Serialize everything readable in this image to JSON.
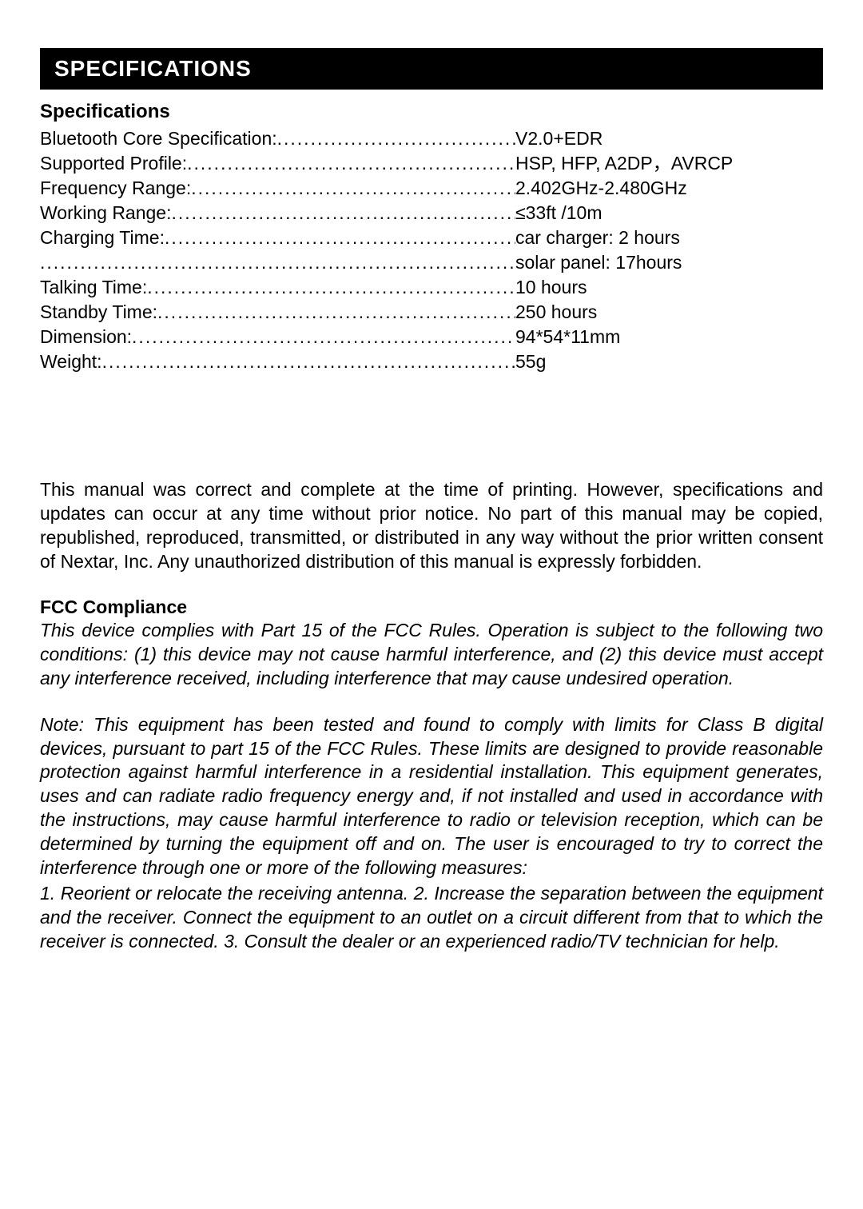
{
  "header": {
    "title": "SPECIFICATIONS"
  },
  "specs": {
    "heading": "Specifications",
    "rows": [
      {
        "label": "Bluetooth Core Specification: ",
        "value": "V2.0+EDR"
      },
      {
        "label": "Supported Profile: ",
        "value": "HSP, HFP, A2DP，AVRCP"
      },
      {
        "label": "Frequency Range: ",
        "value": "2.402GHz-2.480GHz"
      },
      {
        "label": "Working Range: ",
        "value": "≤33ft /10m"
      },
      {
        "label": "Charging Time: ",
        "value": "car charger: 2 hours"
      },
      {
        "label": "",
        "value": "solar panel: 17hours"
      },
      {
        "label": "Talking Time: ",
        "value": "10 hours"
      },
      {
        "label": "Standby Time: ",
        "value": "250 hours"
      },
      {
        "label": "Dimension: ",
        "value": "94*54*11mm"
      },
      {
        "label": "Weight: ",
        "value": "55g"
      }
    ]
  },
  "disclaimer": "This manual was correct and complete at the time of printing. However, specifications and updates can occur at any time without prior notice. No part of this manual may be copied, republished, reproduced, transmitted, or distributed in any way without the prior written consent of Nextar, Inc. Any unauthorized distribution of this manual is expressly forbidden.",
  "fcc": {
    "heading": "FCC Compliance",
    "para1": "This device complies with Part 15 of the FCC Rules. Operation is subject to the following two conditions: (1) this device may not cause harmful interference, and (2) this device must accept any interference received, including interference that may cause undesired operation.",
    "para2": "Note: This equipment has been tested and found to comply with limits for Class B digital devices, pursuant to part 15 of the FCC Rules. These limits are designed to provide reasonable protection against harmful interference in a residential installation. This equipment generates, uses and can radiate radio frequency energy and, if not installed and used in accordance with the instructions, may cause harmful interference to radio or television reception, which can be determined by turning the equipment off and on. The user is encouraged to try to correct the interference through one or more of the following measures:",
    "para3": "1. Reorient or relocate the receiving antenna. 2. Increase the separation between the equipment and the receiver. Connect the equipment to an outlet on a circuit different from that to which the receiver is connected. 3. Consult the dealer or an experienced radio/TV technician for help."
  },
  "style": {
    "background_color": "#ffffff",
    "text_color": "#000000",
    "header_bg": "#000000",
    "header_text": "#ffffff",
    "body_fontsize": 23,
    "header_fontsize": 28
  }
}
